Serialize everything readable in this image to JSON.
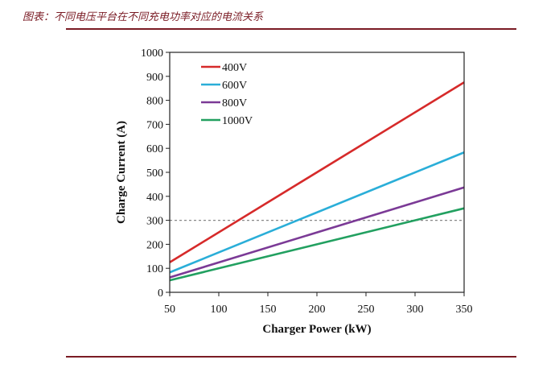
{
  "caption": "图表：不同电压平台在不同充电功率对应的电流关系",
  "chart_data": {
    "type": "line",
    "title": "",
    "xlabel": "Charger Power (kW)",
    "ylabel": "Charge Current (A)",
    "xlim": [
      50,
      350
    ],
    "ylim": [
      0,
      1000
    ],
    "x_ticks": [
      50,
      100,
      150,
      200,
      250,
      300,
      350
    ],
    "y_ticks": [
      0,
      100,
      200,
      300,
      400,
      500,
      600,
      700,
      800,
      900,
      1000
    ],
    "legend_position": "top-left",
    "grid": false,
    "reference_line": {
      "y": 300,
      "style": "dashed",
      "color": "#888888"
    },
    "x": [
      50,
      350
    ],
    "series": [
      {
        "name": "400V",
        "color": "#d62a2a",
        "values": [
          125,
          875
        ]
      },
      {
        "name": "600V",
        "color": "#2aaed8",
        "values": [
          83,
          583
        ]
      },
      {
        "name": "800V",
        "color": "#7b3a96",
        "values": [
          62,
          437
        ]
      },
      {
        "name": "1000V",
        "color": "#22a060",
        "values": [
          50,
          350
        ]
      }
    ]
  }
}
